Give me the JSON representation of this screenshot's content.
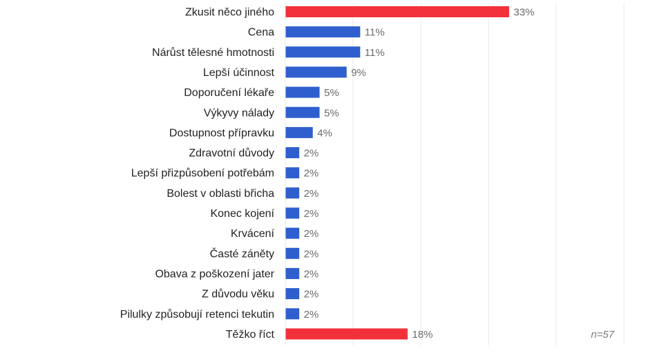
{
  "chart_data": {
    "type": "bar",
    "orientation": "horizontal",
    "categories": [
      "Zkusit něco jiného",
      "Cena",
      "Nárůst tělesné hmotnosti",
      "Lepší účinnost",
      "Doporučení lékaře",
      "Výkyvy nálady",
      "Dostupnost přípravku",
      "Zdravotní důvody",
      "Lepší přizpůsobení potřebám",
      "Bolest v oblasti břicha",
      "Konec kojení",
      "Krvácení",
      "Časté záněty",
      "Obava z poškození jater",
      "Z důvodu věku",
      "Pilulky způsobují retenci tekutin",
      "Těžko říct"
    ],
    "values": [
      33,
      11,
      11,
      9,
      5,
      5,
      4,
      2,
      2,
      2,
      2,
      2,
      2,
      2,
      2,
      2,
      18
    ],
    "value_labels": [
      "33%",
      "11%",
      "11%",
      "9%",
      "5%",
      "5%",
      "4%",
      "2%",
      "2%",
      "2%",
      "2%",
      "2%",
      "2%",
      "2%",
      "2%",
      "2%",
      "18%"
    ],
    "highlighted": [
      true,
      false,
      false,
      false,
      false,
      false,
      false,
      false,
      false,
      false,
      false,
      false,
      false,
      false,
      false,
      false,
      true
    ],
    "xlim": [
      0,
      60
    ],
    "gridlines_at": [
      0,
      10,
      20,
      30,
      40,
      50
    ],
    "grid": true,
    "colors": {
      "highlight": "#f2313b",
      "default": "#2f5fce",
      "grid": "#e6e8ef"
    }
  },
  "note": "n=57"
}
